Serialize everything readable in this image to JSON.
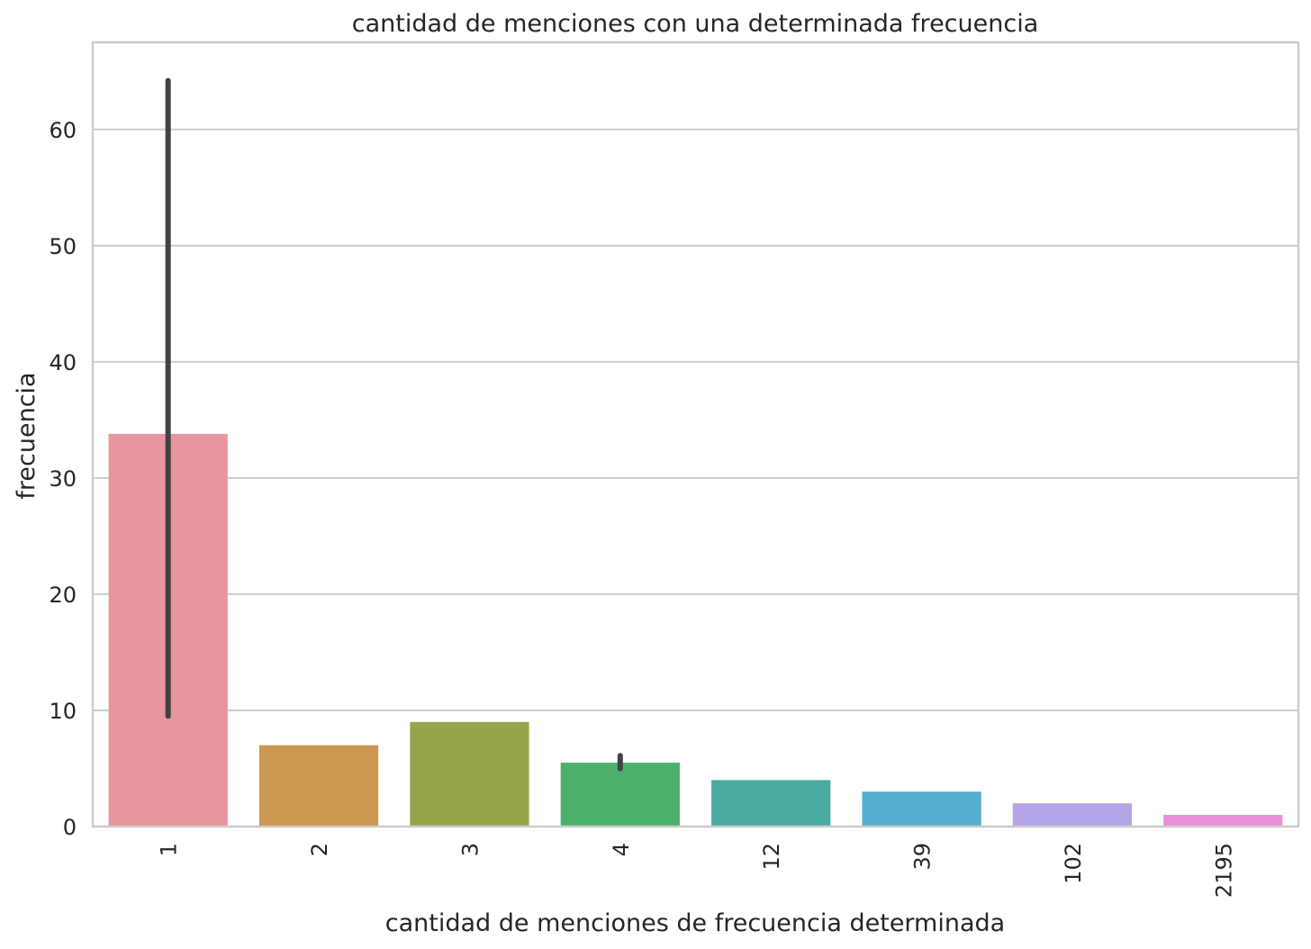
{
  "chart_data": {
    "type": "bar",
    "title": "cantidad de menciones con una determinada frecuencia",
    "xlabel": "cantidad de menciones de frecuencia determinada",
    "ylabel": "frecuencia",
    "categories": [
      "1",
      "2",
      "3",
      "4",
      "12",
      "39",
      "102",
      "2195"
    ],
    "values": [
      33.8,
      7,
      9,
      5.5,
      4,
      3,
      2,
      1
    ],
    "error_bars": [
      [
        9.5,
        64.2
      ],
      null,
      null,
      [
        5.0,
        6.1
      ],
      null,
      null,
      null,
      null
    ],
    "colors": [
      "#e8959f",
      "#cc974e",
      "#98a44a",
      "#4caf6c",
      "#4aaba2",
      "#55adcf",
      "#b5a5e8",
      "#ea8fd9"
    ],
    "ylim": [
      0,
      67.5
    ],
    "yticks": [
      0,
      10,
      20,
      30,
      40,
      50,
      60
    ],
    "grid": true,
    "legend": "none"
  }
}
